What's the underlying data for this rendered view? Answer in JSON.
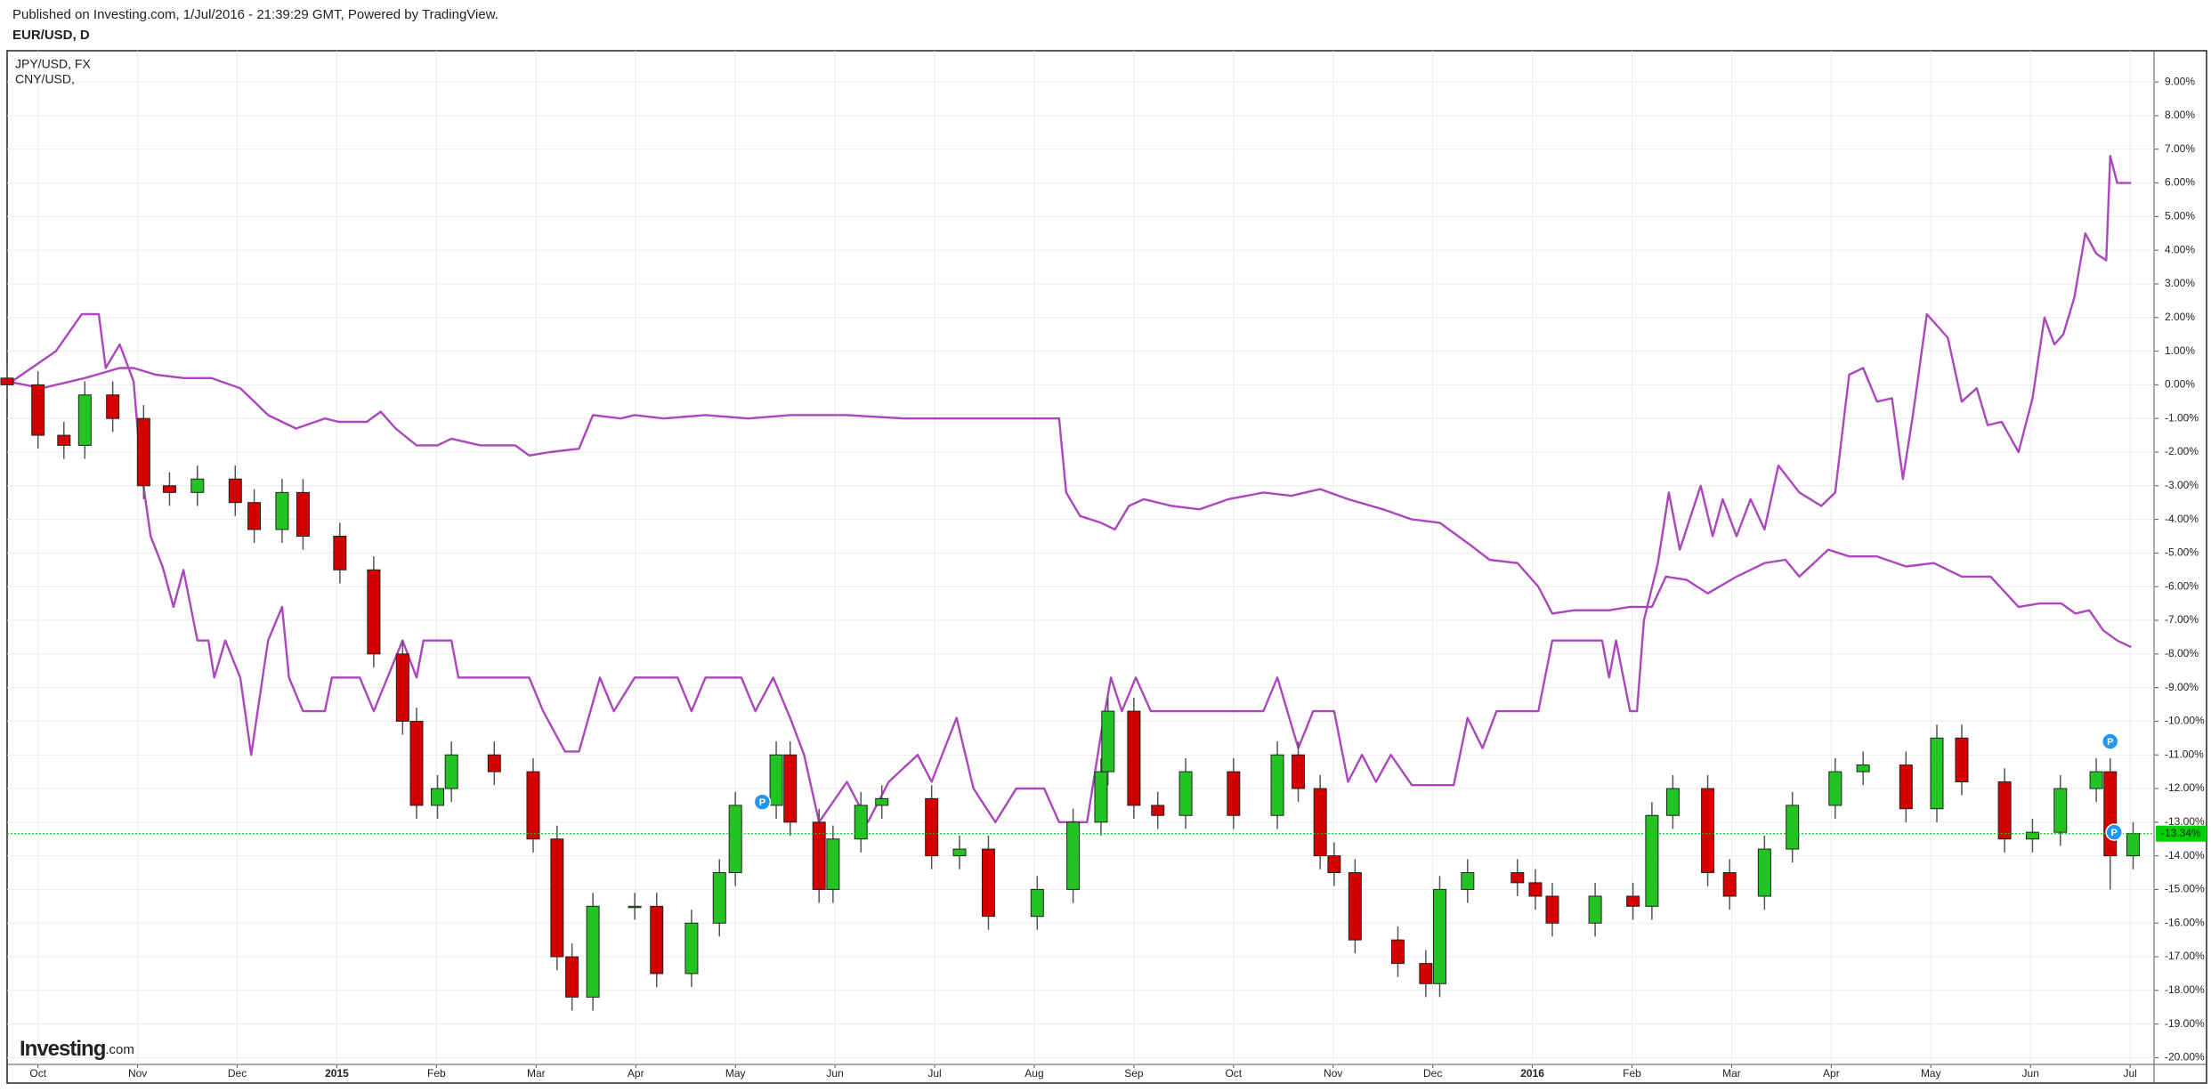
{
  "header": "Published on Investing.com, 1/Jul/2016 - 21:39:29 GMT, Powered by TradingView.",
  "logo": {
    "name": "Investing",
    "suffix": ".com"
  },
  "chart_data": {
    "type": "candlestick",
    "symbol": "EUR/USD, D",
    "up_color": "#22c322",
    "down_color": "#d40000",
    "x": [
      -0.31,
      0,
      0.26,
      0.47,
      0.75,
      1.06,
      1.32,
      1.6,
      1.98,
      2.17,
      2.45,
      2.66,
      3.03,
      3.37,
      3.66,
      3.8,
      4.01,
      4.15,
      4.58,
      4.97,
      5.21,
      5.36,
      5.57,
      5.99,
      6.21,
      6.56,
      6.84,
      7,
      7.41,
      7.55,
      7.84,
      7.98,
      8.26,
      8.47,
      8.97,
      9.25,
      9.54,
      10.03,
      10.39,
      10.67,
      10.74,
      11,
      11.24,
      11.52,
      12,
      12.44,
      12.65,
      12.87,
      13.01,
      13.22,
      13.65,
      13.93,
      14.07,
      14.35,
      14.85,
      15.03,
      15.2,
      15.63,
      16.01,
      16.2,
      16.41,
      16.76,
      16.98,
      17.33,
      17.61,
      18.04,
      18.32,
      18.75,
      19.06,
      19.31,
      19.74,
      20.02,
      20.3,
      20.66,
      20.8,
      21.03
    ],
    "open": [
      0.2,
      0,
      -1.5,
      -1.8,
      -0.3,
      -1,
      -3,
      -3.2,
      -2.8,
      -3.5,
      -4.3,
      -3.2,
      -4.5,
      -5.5,
      -8,
      -10,
      -12.5,
      -12,
      -11,
      -11.5,
      -13.5,
      -17,
      -18.2,
      -15.5,
      -15.5,
      -17.5,
      -16,
      -14.5,
      -12.5,
      -11,
      -13,
      -15,
      -13.5,
      -12.5,
      -12.3,
      -14,
      -13.8,
      -15.8,
      -15,
      -13,
      -11.5,
      -9.7,
      -12.5,
      -12.8,
      -11.5,
      -12.8,
      -11,
      -12,
      -14,
      -14.5,
      -16.5,
      -17.2,
      -17.8,
      -15,
      -14.5,
      -14.8,
      -15.2,
      -16,
      -15.2,
      -15.5,
      -12.8,
      -12,
      -14.5,
      -15.2,
      -13.8,
      -12.5,
      -11.5,
      -11.3,
      -12.6,
      -10.5,
      -11.8,
      -13.5,
      -13.3,
      -12,
      -11.5,
      -14
    ],
    "high": [
      0.6,
      0.4,
      -1.1,
      0.1,
      0.1,
      -0.6,
      -2.6,
      -2.4,
      -2.4,
      -3.1,
      -2.8,
      -2.8,
      -4.1,
      -5.1,
      -7.6,
      -9.6,
      -11.6,
      -10.6,
      -10.6,
      -11.1,
      -13.1,
      -16.6,
      -15.1,
      -15.1,
      -15.1,
      -15.6,
      -14.1,
      -12.1,
      -10.6,
      -10.6,
      -12.6,
      -13.1,
      -12.1,
      -11.9,
      -11.9,
      -13.4,
      -13.4,
      -14.6,
      -12.6,
      -11.1,
      -9.3,
      -9.3,
      -12.1,
      -11.1,
      -11.1,
      -10.6,
      -10.6,
      -11.6,
      -13.6,
      -14.1,
      -16.1,
      -16.8,
      -14.6,
      -14.1,
      -14.1,
      -14.4,
      -14.8,
      -14.8,
      -14.8,
      -12.4,
      -11.6,
      -11.6,
      -14.1,
      -13.4,
      -12.1,
      -11.1,
      -10.9,
      -10.9,
      -10.1,
      -10.1,
      -11.4,
      -12.9,
      -11.6,
      -11.1,
      -11.1,
      -13
    ],
    "low": [
      -0.4,
      -1.9,
      -2.2,
      -2.2,
      -1.4,
      -3.4,
      -3.6,
      -3.6,
      -3.9,
      -4.7,
      -4.7,
      -4.9,
      -5.9,
      -8.4,
      -10.4,
      -12.9,
      -12.9,
      -12.4,
      -11.9,
      -13.9,
      -17.4,
      -18.6,
      -18.6,
      -15.9,
      -17.9,
      -17.9,
      -16.4,
      -14.9,
      -12.9,
      -13.4,
      -15.4,
      -15.4,
      -13.9,
      -12.9,
      -14.4,
      -14.4,
      -16.2,
      -16.2,
      -15.4,
      -13.4,
      -11.9,
      -12.9,
      -13.2,
      -13.2,
      -13.2,
      -13.2,
      -12.4,
      -14.4,
      -14.9,
      -16.9,
      -17.6,
      -18.2,
      -18.2,
      -15.4,
      -15.2,
      -15.6,
      -16.4,
      -16.4,
      -15.9,
      -15.9,
      -13.2,
      -14.9,
      -15.6,
      -15.6,
      -14.2,
      -12.9,
      -11.9,
      -13,
      -13,
      -12.2,
      -13.9,
      -13.9,
      -13.7,
      -12.4,
      -15,
      -14.4
    ],
    "close": [
      0,
      -1.5,
      -1.8,
      -0.3,
      -1,
      -3,
      -3.2,
      -2.8,
      -3.5,
      -4.3,
      -3.2,
      -4.5,
      -5.5,
      -8,
      -10,
      -12.5,
      -12,
      -11,
      -11.5,
      -13.5,
      -17,
      -18.2,
      -15.5,
      -15.5,
      -17.5,
      -16,
      -14.5,
      -12.5,
      -11,
      -13,
      -15,
      -13.5,
      -12.5,
      -12.3,
      -14,
      -13.8,
      -15.8,
      -15,
      -13,
      -11.5,
      -9.7,
      -12.5,
      -12.8,
      -11.5,
      -12.8,
      -11,
      -12,
      -14,
      -14.5,
      -16.5,
      -17.2,
      -17.8,
      -15,
      -14.5,
      -14.8,
      -15.2,
      -16,
      -15.2,
      -15.5,
      -12.8,
      -12,
      -14.5,
      -15.2,
      -13.8,
      -12.5,
      -11.5,
      -11.3,
      -12.6,
      -10.5,
      -11.8,
      -13.5,
      -13.3,
      -12,
      -11.5,
      -14,
      -13.34
    ],
    "series": [
      {
        "name": "JPY/USD, FX",
        "color": "#ab47bc",
        "x": [
          -0.31,
          0.18,
          0.44,
          0.61,
          0.68,
          0.82,
          0.96,
          1.03,
          1.13,
          1.25,
          1.36,
          1.46,
          1.6,
          1.71,
          1.77,
          1.88,
          2.03,
          2.14,
          2.31,
          2.45,
          2.52,
          2.66,
          2.88,
          2.95,
          3.23,
          3.37,
          3.66,
          3.8,
          3.87,
          4.15,
          4.22,
          4.93,
          5.07,
          5.29,
          5.43,
          5.64,
          5.78,
          5.99,
          6.42,
          6.56,
          6.7,
          7.06,
          7.2,
          7.38,
          7.55,
          7.69,
          7.84,
          8.12,
          8.33,
          8.54,
          8.83,
          8.97,
          9.22,
          9.39,
          9.61,
          9.82,
          10.1,
          10.25,
          10.53,
          10.67,
          10.77,
          10.88,
          11.02,
          11.17,
          12.3,
          12.44,
          12.65,
          12.8,
          13.01,
          13.15,
          13.29,
          13.43,
          13.58,
          13.79,
          14.21,
          14.35,
          14.5,
          14.64,
          15.06,
          15.2,
          15.7,
          15.77,
          15.84,
          15.98,
          16.05,
          16.12,
          16.26,
          16.37,
          16.48,
          16.69,
          16.81,
          16.91,
          17.05,
          17.19,
          17.33,
          17.47,
          17.68,
          17.9,
          18.04,
          18.18,
          18.32,
          18.46,
          18.61,
          18.72,
          18.82,
          18.96,
          19.17,
          19.31,
          19.46,
          19.57,
          19.71,
          19.88,
          20.02,
          20.14,
          20.24,
          20.33,
          20.44,
          20.55,
          20.66,
          20.76,
          20.8,
          20.87,
          21.01
        ],
        "values": [
          0,
          1,
          2.1,
          2.1,
          0.5,
          1.2,
          0.1,
          -2.4,
          -4.5,
          -5.4,
          -6.6,
          -5.5,
          -7.6,
          -7.6,
          -8.7,
          -7.6,
          -8.7,
          -11,
          -7.6,
          -6.6,
          -8.7,
          -9.7,
          -9.7,
          -8.7,
          -8.7,
          -9.7,
          -7.6,
          -8.7,
          -7.6,
          -7.6,
          -8.7,
          -8.7,
          -9.7,
          -10.9,
          -10.9,
          -8.7,
          -9.7,
          -8.7,
          -8.7,
          -9.7,
          -8.7,
          -8.7,
          -9.7,
          -8.7,
          -9.9,
          -11,
          -13,
          -11.8,
          -13,
          -11.8,
          -11,
          -11.8,
          -9.9,
          -12,
          -13,
          -12,
          -12,
          -13,
          -13,
          -10.4,
          -8.7,
          -9.7,
          -8.7,
          -9.7,
          -9.7,
          -8.7,
          -10.8,
          -9.7,
          -9.7,
          -11.8,
          -11,
          -11.8,
          -11,
          -11.9,
          -11.9,
          -9.9,
          -10.8,
          -9.7,
          -9.7,
          -7.6,
          -7.6,
          -8.7,
          -7.6,
          -9.7,
          -9.7,
          -7,
          -5.3,
          -3.2,
          -4.9,
          -3,
          -4.5,
          -3.4,
          -4.5,
          -3.4,
          -4.3,
          -2.4,
          -3.2,
          -3.6,
          -3.2,
          0.3,
          0.5,
          -0.5,
          -0.4,
          -2.8,
          -0.9,
          2.1,
          1.4,
          -0.5,
          -0.1,
          -1.2,
          -1.1,
          -2,
          -0.4,
          2,
          1.2,
          1.5,
          2.6,
          4.5,
          3.9,
          3.7,
          6.8,
          6,
          6
        ]
      },
      {
        "name": "CNY/USD,",
        "color": "#ab47bc",
        "x": [
          -0.31,
          0.04,
          0.47,
          0.82,
          0.96,
          1.18,
          1.46,
          1.74,
          2.03,
          2.17,
          2.31,
          2.45,
          2.59,
          2.88,
          3.02,
          3.3,
          3.44,
          3.59,
          3.8,
          4.01,
          4.15,
          4.44,
          4.79,
          4.93,
          5.14,
          5.43,
          5.57,
          5.85,
          5.99,
          6.28,
          6.7,
          7.13,
          7.55,
          8.12,
          8.69,
          9.54,
          10.25,
          10.32,
          10.46,
          10.67,
          10.81,
          10.95,
          11.1,
          11.38,
          11.66,
          11.95,
          12.3,
          12.58,
          12.87,
          13.15,
          13.5,
          13.79,
          14.07,
          14.35,
          14.57,
          14.85,
          15.06,
          15.2,
          15.42,
          15.77,
          15.98,
          16.2,
          16.34,
          16.55,
          16.76,
          17.05,
          17.33,
          17.54,
          17.68,
          17.97,
          18.18,
          18.46,
          18.75,
          19.03,
          19.31,
          19.6,
          19.88,
          20.09,
          20.31,
          20.45,
          20.59,
          20.73,
          20.87,
          21.01
        ],
        "values": [
          0.1,
          -0.1,
          0.2,
          0.5,
          0.5,
          0.3,
          0.2,
          0.2,
          -0.1,
          -0.5,
          -0.9,
          -1.1,
          -1.3,
          -1,
          -1.1,
          -1.1,
          -0.8,
          -1.3,
          -1.8,
          -1.8,
          -1.6,
          -1.8,
          -1.8,
          -2.1,
          -2,
          -1.9,
          -0.9,
          -1,
          -0.9,
          -1,
          -0.9,
          -1,
          -0.9,
          -0.9,
          -1,
          -1,
          -1,
          -3.2,
          -3.9,
          -4.1,
          -4.3,
          -3.6,
          -3.4,
          -3.6,
          -3.7,
          -3.4,
          -3.2,
          -3.3,
          -3.1,
          -3.4,
          -3.7,
          -4,
          -4.1,
          -4.7,
          -5.2,
          -5.3,
          -6,
          -6.8,
          -6.7,
          -6.7,
          -6.6,
          -6.6,
          -5.7,
          -5.8,
          -6.2,
          -5.7,
          -5.3,
          -5.2,
          -5.7,
          -4.9,
          -5.1,
          -5.1,
          -5.4,
          -5.3,
          -5.7,
          -5.7,
          -6.6,
          -6.5,
          -6.5,
          -6.8,
          -6.7,
          -7.3,
          -7.6,
          -7.8
        ]
      }
    ],
    "xlim": [
      -0.31,
      21.24
    ],
    "xticks": [
      {
        "value": 0,
        "label": "Oct"
      },
      {
        "value": 1,
        "label": "Nov"
      },
      {
        "value": 2,
        "label": "Dec"
      },
      {
        "value": 3,
        "label": "2015"
      },
      {
        "value": 4,
        "label": "Feb"
      },
      {
        "value": 5,
        "label": "Mar"
      },
      {
        "value": 6,
        "label": "Apr"
      },
      {
        "value": 7,
        "label": "May"
      },
      {
        "value": 8,
        "label": "Jun"
      },
      {
        "value": 9,
        "label": "Jul"
      },
      {
        "value": 10,
        "label": "Aug"
      },
      {
        "value": 11,
        "label": "Sep"
      },
      {
        "value": 12,
        "label": "Oct"
      },
      {
        "value": 13,
        "label": "Nov"
      },
      {
        "value": 14,
        "label": "Dec"
      },
      {
        "value": 15,
        "label": "2016"
      },
      {
        "value": 16,
        "label": "Feb"
      },
      {
        "value": 17,
        "label": "Mar"
      },
      {
        "value": 18,
        "label": "Apr"
      },
      {
        "value": 19,
        "label": "May"
      },
      {
        "value": 20,
        "label": "Jun"
      },
      {
        "value": 21,
        "label": "Jul"
      }
    ],
    "ylim": [
      -20.2,
      9.93
    ],
    "yticks": [
      {
        "value": 9,
        "label": "9.00%"
      },
      {
        "value": 8,
        "label": "8.00%"
      },
      {
        "value": 7,
        "label": "7.00%"
      },
      {
        "value": 6,
        "label": "6.00%"
      },
      {
        "value": 5,
        "label": "5.00%"
      },
      {
        "value": 4,
        "label": "4.00%"
      },
      {
        "value": 3,
        "label": "3.00%"
      },
      {
        "value": 2,
        "label": "2.00%"
      },
      {
        "value": 1,
        "label": "1.00%"
      },
      {
        "value": 0,
        "label": "0.00%"
      },
      {
        "value": -1,
        "label": "-1.00%"
      },
      {
        "value": -2,
        "label": "-2.00%"
      },
      {
        "value": -3,
        "label": "-3.00%"
      },
      {
        "value": -4,
        "label": "-4.00%"
      },
      {
        "value": -5,
        "label": "-5.00%"
      },
      {
        "value": -6,
        "label": "-6.00%"
      },
      {
        "value": -7,
        "label": "-7.00%"
      },
      {
        "value": -8,
        "label": "-8.00%"
      },
      {
        "value": -9,
        "label": "-9.00%"
      },
      {
        "value": -10,
        "label": "-10.00%"
      },
      {
        "value": -11,
        "label": "-11.00%"
      },
      {
        "value": -12,
        "label": "-12.00%"
      },
      {
        "value": -13,
        "label": "-13.00%"
      },
      {
        "value": -14,
        "label": "-14.00%"
      },
      {
        "value": -15,
        "label": "-15.00%"
      },
      {
        "value": -16,
        "label": "-16.00%"
      },
      {
        "value": -17,
        "label": "-17.00%"
      },
      {
        "value": -18,
        "label": "-18.00%"
      },
      {
        "value": -19,
        "label": "-19.00%"
      },
      {
        "value": -20,
        "label": "-20.00%"
      }
    ],
    "grid": true,
    "last": {
      "value": -13.34,
      "label": "-13.34%",
      "color": "#00d000"
    },
    "events": [
      {
        "x": 7.27,
        "value": -12.4,
        "label": "P"
      },
      {
        "x": 20.8,
        "value": -10.6,
        "label": "P"
      },
      {
        "x": 20.84,
        "value": -13.3,
        "label": "P"
      }
    ]
  }
}
